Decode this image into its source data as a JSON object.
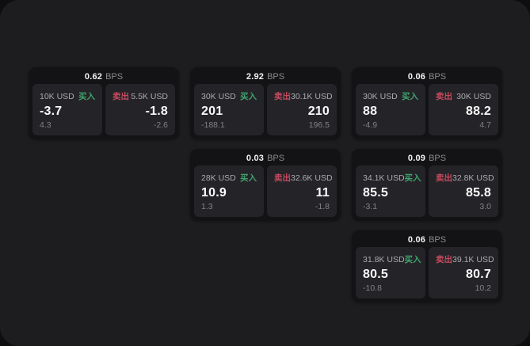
{
  "labels": {
    "bps_unit": "BPS",
    "buy": "买入",
    "sell": "卖出"
  },
  "colors": {
    "page_background": "#0e0e0f",
    "container_background": "#1d1d1f",
    "card_background": "#131315",
    "tile_background": "#242428",
    "buy_accent": "#3fa36c",
    "sell_accent": "#c64a5e",
    "primary_text": "#fafafa",
    "secondary_text": "#8a8a90"
  },
  "cards": [
    {
      "bps": "0.62",
      "buy": {
        "amount": "10K USD",
        "price": "-3.7",
        "change": "4.3"
      },
      "sell": {
        "amount": "5.5K USD",
        "price": "-1.8",
        "change": "-2.6"
      }
    },
    {
      "bps": "2.92",
      "buy": {
        "amount": "30K USD",
        "price": "201",
        "change": "-188.1"
      },
      "sell": {
        "amount": "30.1K USD",
        "price": "210",
        "change": "196.5"
      }
    },
    {
      "bps": "0.06",
      "buy": {
        "amount": "30K USD",
        "price": "88",
        "change": "-4.9"
      },
      "sell": {
        "amount": "30K USD",
        "price": "88.2",
        "change": "4.7"
      }
    },
    {
      "bps": "0.03",
      "buy": {
        "amount": "28K USD",
        "price": "10.9",
        "change": "1.3"
      },
      "sell": {
        "amount": "32.6K USD",
        "price": "11",
        "change": "-1.8"
      }
    },
    {
      "bps": "0.09",
      "buy": {
        "amount": "34.1K USD",
        "price": "85.5",
        "change": "-3.1"
      },
      "sell": {
        "amount": "32.8K USD",
        "price": "85.8",
        "change": "3.0"
      }
    },
    {
      "bps": "0.06",
      "buy": {
        "amount": "31.8K USD",
        "price": "80.5",
        "change": "-10.8"
      },
      "sell": {
        "amount": "39.1K USD",
        "price": "80.7",
        "change": "10.2"
      }
    }
  ]
}
